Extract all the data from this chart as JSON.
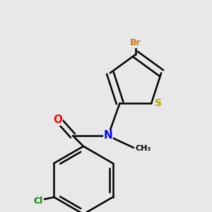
{
  "background_color": "#e8e8e8",
  "bond_color": "#000000",
  "bond_width": 1.8,
  "atom_colors": {
    "Br": "#cc7722",
    "S": "#aaaa00",
    "N": "#0000ff",
    "O": "#ff0000",
    "Cl": "#008800"
  },
  "figsize": [
    3.0,
    3.0
  ],
  "dpi": 100
}
